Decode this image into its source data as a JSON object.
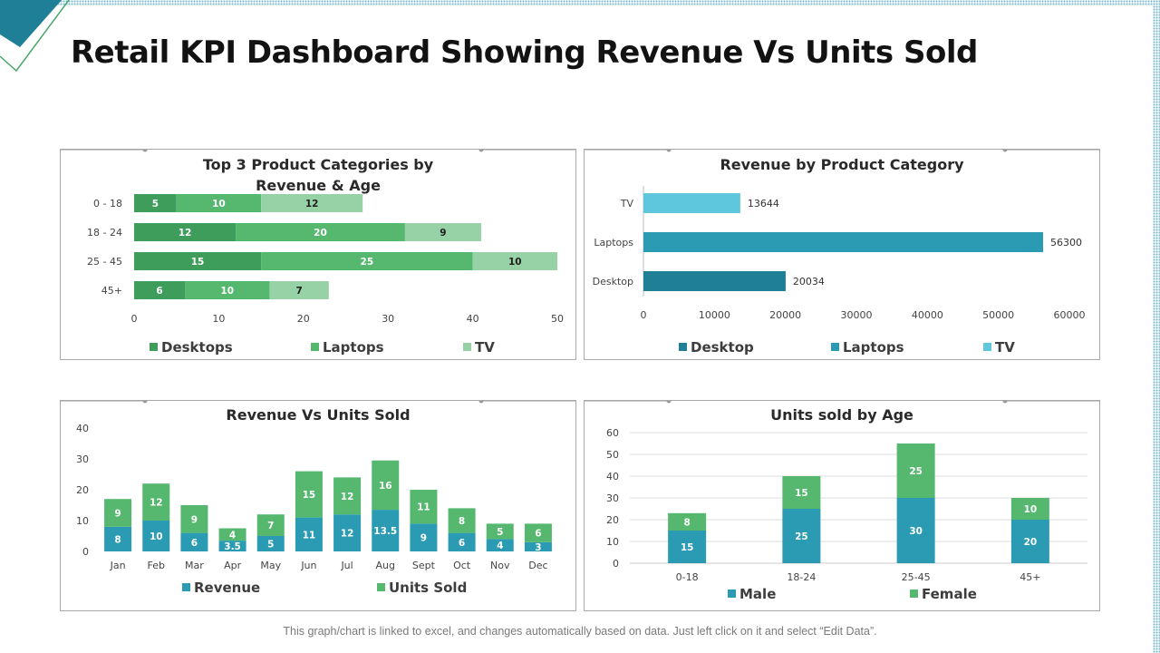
{
  "page": {
    "title": "Retail KPI Dashboard Showing Revenue Vs Units Sold",
    "footer": "This graph/chart is linked to excel, and changes automatically based on data. Just left click on it and select “Edit Data”."
  },
  "colors": {
    "green_dark": "#3f9d5b",
    "green_mid": "#55b86e",
    "green_light": "#96d2a6",
    "teal_dark": "#1f7f96",
    "teal_mid": "#2a9bb3",
    "teal_light": "#5fc7dd",
    "grid": "#dddddd"
  },
  "chart_data": [
    {
      "type": "bar",
      "orientation": "horizontal",
      "stacked": true,
      "title": "Top 3 Product Categories by Revenue & Age",
      "title_lines": [
        "Top 3 Product Categories  by",
        "Revenue & Age"
      ],
      "categories": [
        "0 - 18",
        "18 - 24",
        "25 - 45",
        "45+"
      ],
      "series": [
        {
          "name": "Desktops",
          "values": [
            5,
            12,
            15,
            6
          ]
        },
        {
          "name": "Laptops",
          "values": [
            10,
            20,
            25,
            10
          ]
        },
        {
          "name": "TV",
          "values": [
            12,
            9,
            10,
            7
          ]
        }
      ],
      "xlim": [
        0,
        50
      ],
      "xticks": [
        0,
        10,
        20,
        30,
        40,
        50
      ],
      "legend": "bottom"
    },
    {
      "type": "bar",
      "orientation": "horizontal",
      "title": "Revenue by Product Category",
      "categories": [
        "TV",
        "Laptops",
        "Desktop"
      ],
      "values": [
        13644,
        56300,
        20034
      ],
      "legend_items": [
        "Desktop",
        "Laptops",
        "TV"
      ],
      "xlim": [
        0,
        60000
      ],
      "xticks": [
        0,
        10000,
        20000,
        30000,
        40000,
        50000,
        60000
      ],
      "legend": "bottom"
    },
    {
      "type": "bar",
      "stacked": true,
      "title": "Revenue Vs Units Sold",
      "categories": [
        "Jan",
        "Feb",
        "Mar",
        "Apr",
        "May",
        "Jun",
        "Jul",
        "Aug",
        "Sept",
        "Oct",
        "Nov",
        "Dec"
      ],
      "series": [
        {
          "name": "Revenue",
          "values": [
            8,
            10,
            6,
            3.5,
            5,
            11,
            12,
            13.5,
            9,
            6,
            4,
            3
          ]
        },
        {
          "name": "Units Sold",
          "values": [
            9,
            12,
            9,
            4,
            7,
            15,
            12,
            16,
            11,
            8,
            5,
            6
          ]
        }
      ],
      "ylim": [
        0,
        40
      ],
      "yticks": [
        0,
        10,
        20,
        30,
        40
      ],
      "legend": "bottom"
    },
    {
      "type": "bar",
      "stacked": true,
      "title": "Units sold by Age",
      "categories": [
        "0-18",
        "18-24",
        "25-45",
        "45+"
      ],
      "series": [
        {
          "name": "Male",
          "values": [
            15,
            25,
            30,
            20
          ]
        },
        {
          "name": "Female",
          "values": [
            8,
            15,
            25,
            10
          ]
        }
      ],
      "ylim": [
        0,
        60
      ],
      "yticks": [
        0,
        10,
        20,
        30,
        40,
        50,
        60
      ],
      "legend": "bottom"
    }
  ]
}
